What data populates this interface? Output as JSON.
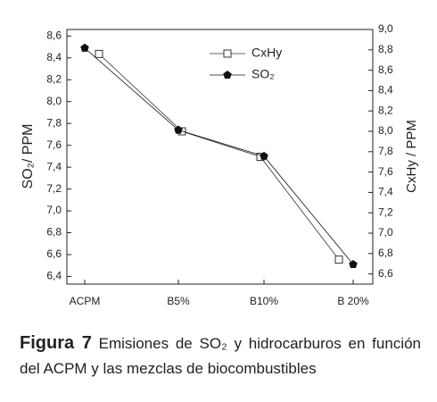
{
  "chart_data": {
    "type": "line",
    "categories": [
      "ACPM",
      "B5%",
      "B10%",
      "B 20%"
    ],
    "series": [
      {
        "name": "CxHy",
        "color": "#333333",
        "marker": "square",
        "axis": "y2",
        "values": [
          8.76,
          8.0,
          7.75,
          6.74
        ]
      },
      {
        "name": "SO₂",
        "color": "#111111",
        "marker": "pentagon",
        "values": [
          8.49,
          7.74,
          7.5,
          6.51
        ]
      }
    ],
    "ylabel": "SO₂/ PPM",
    "y2label": "CxHy / PPM",
    "ylim": [
      6.33,
      8.66
    ],
    "yticks": [
      {
        "value": 6.4,
        "label": "6,4"
      },
      {
        "value": 6.6,
        "label": "6,6"
      },
      {
        "value": 6.8,
        "label": "6,8"
      },
      {
        "value": 7.0,
        "label": "7,0"
      },
      {
        "value": 7.2,
        "label": "7,2"
      },
      {
        "value": 7.4,
        "label": "7,4"
      },
      {
        "value": 7.6,
        "label": "7,6"
      },
      {
        "value": 7.8,
        "label": "7,8"
      },
      {
        "value": 8.0,
        "label": "8,0"
      },
      {
        "value": 8.2,
        "label": "8,2"
      },
      {
        "value": 8.4,
        "label": "8,4"
      },
      {
        "value": 8.6,
        "label": "8,6"
      }
    ],
    "y2lim": [
      6.5,
      9.0
    ],
    "y2ticks": [
      {
        "value": 6.6,
        "label": "6,6"
      },
      {
        "value": 6.8,
        "label": "6,8"
      },
      {
        "value": 7.0,
        "label": "7,0"
      },
      {
        "value": 7.2,
        "label": "7,2"
      },
      {
        "value": 7.4,
        "label": "7,4"
      },
      {
        "value": 7.6,
        "label": "7,6"
      },
      {
        "value": 7.8,
        "label": "7,8"
      },
      {
        "value": 8.0,
        "label": "8,0"
      },
      {
        "value": 8.2,
        "label": "8,2"
      },
      {
        "value": 8.4,
        "label": "8,4"
      },
      {
        "value": 8.6,
        "label": "8,6"
      },
      {
        "value": 8.8,
        "label": "8,8"
      },
      {
        "value": 9.0,
        "label": "9,0"
      }
    ],
    "legend": "upper-right",
    "grid": false
  },
  "caption": {
    "label": "Figura 7",
    "text": "Emisiones de SO₂ y hidrocarburos en función del ACPM y las mezclas de biocombustibles"
  }
}
